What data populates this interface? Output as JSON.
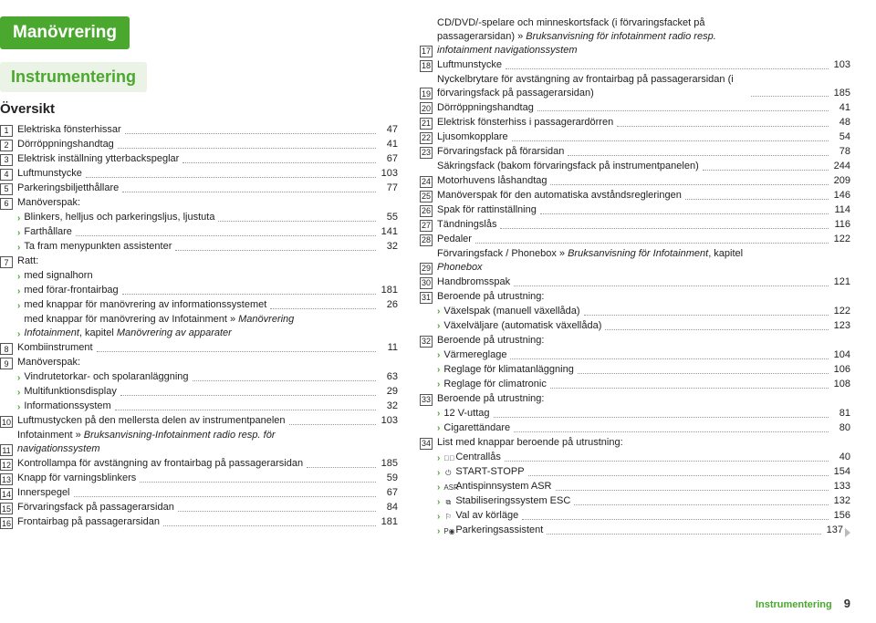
{
  "header": {
    "title": "Manövrering",
    "subtitle": "Instrumentering",
    "overview": "Översikt"
  },
  "footer": {
    "section": "Instrumentering",
    "page": "9"
  },
  "left": [
    {
      "n": "1",
      "t": "Elektriska fönsterhissar",
      "p": "47"
    },
    {
      "n": "2",
      "t": "Dörröppningshandtag",
      "p": "41"
    },
    {
      "n": "3",
      "t": "Elektrisk inställning ytterbackspeglar",
      "p": "67"
    },
    {
      "n": "4",
      "t": "Luftmunstycke",
      "p": "103"
    },
    {
      "n": "5",
      "t": "Parkeringsbiljetthållare",
      "p": "77"
    },
    {
      "n": "6",
      "t": "Manöverspak:",
      "noPage": true
    },
    {
      "sub": true,
      "t": "Blinkers, helljus och parkeringsljus, ljustuta",
      "p": "55"
    },
    {
      "sub": true,
      "t": "Farthållare",
      "p": "141"
    },
    {
      "sub": true,
      "t": "Ta fram menypunkten assistenter",
      "p": "32"
    },
    {
      "n": "7",
      "t": "Ratt:",
      "noPage": true
    },
    {
      "sub": true,
      "t": "med signalhorn",
      "noPage": true
    },
    {
      "sub": true,
      "t": "med förar-frontairbag",
      "p": "181"
    },
    {
      "sub": true,
      "t": "med knappar för manövrering av informationssystemet",
      "p": "26"
    },
    {
      "sub": true,
      "html": "med knappar för manövrering av Infotainment » <span class='italic'>Manövrering Infotainment</span>, kapitel <span class='italic'>Manövrering av apparater</span>",
      "noPage": true
    },
    {
      "n": "8",
      "t": "Kombiinstrument",
      "p": "11"
    },
    {
      "n": "9",
      "t": "Manöverspak:",
      "noPage": true
    },
    {
      "sub": true,
      "t": "Vindrutetorkar- och spolaranläggning",
      "p": "63"
    },
    {
      "sub": true,
      "t": "Multifunktionsdisplay",
      "p": "29"
    },
    {
      "sub": true,
      "t": "Informationssystem",
      "p": "32"
    },
    {
      "n": "10",
      "t": "Luftmustycken på den mellersta delen av instrumentpanelen",
      "p": "103"
    },
    {
      "n": "11",
      "html": "Infotainment » <span class='italic'>Bruksanvisning-Infotainment radio resp. för navigationssystem</span>",
      "noPage": true
    },
    {
      "n": "12",
      "t": "Kontrollampa för avstängning av frontairbag på passagerarsidan",
      "p": "185"
    },
    {
      "n": "13",
      "t": "Knapp för varningsblinkers",
      "p": "59"
    },
    {
      "n": "14",
      "t": "Innerspegel",
      "p": "67"
    },
    {
      "n": "15",
      "t": "Förvaringsfack på passagerarsidan",
      "p": "84"
    },
    {
      "n": "16",
      "t": "Frontairbag på passagerarsidan",
      "p": "181"
    }
  ],
  "right": [
    {
      "n": "17",
      "html": "CD/DVD/-spelare och minneskortsfack (i förvaringsfacket på passagerarsidan) » <span class='italic'>Bruksanvisning för infotainment radio resp. infotainment navigationssystem</span>",
      "noPage": true
    },
    {
      "n": "18",
      "t": "Luftmunstycke",
      "p": "103"
    },
    {
      "n": "19",
      "t": "Nyckelbrytare för avstängning av frontairbag på passagerarsidan (i förvaringsfack på passagerarsidan)",
      "p": "185"
    },
    {
      "n": "20",
      "t": "Dörröppningshandtag",
      "p": "41"
    },
    {
      "n": "21",
      "t": "Elektrisk fönsterhiss i passagerardörren",
      "p": "48"
    },
    {
      "n": "22",
      "t": "Ljusomkopplare",
      "p": "54"
    },
    {
      "n": "23",
      "t": "Förvaringsfack på förarsidan",
      "p": "78"
    },
    {
      "plain": true,
      "t": "Säkringsfack (bakom förvaringsfack på instrumentpanelen)",
      "p": "244"
    },
    {
      "n": "24",
      "t": "Motorhuvens låshandtag",
      "p": "209"
    },
    {
      "n": "25",
      "t": "Manöverspak för den automatiska avståndsregleringen",
      "p": "146"
    },
    {
      "n": "26",
      "t": "Spak för rattinställning",
      "p": "114"
    },
    {
      "n": "27",
      "t": "Tändningslås",
      "p": "116"
    },
    {
      "n": "28",
      "t": "Pedaler",
      "p": "122"
    },
    {
      "n": "29",
      "html": "Förvaringsfack / Phonebox » <span class='italic'>Bruksanvisning för Infotainment</span>, kapitel <span class='italic'>Phonebox</span>",
      "noPage": true
    },
    {
      "n": "30",
      "t": "Handbromsspak",
      "p": "121"
    },
    {
      "n": "31",
      "t": "Beroende på utrustning:",
      "noPage": true
    },
    {
      "sub": true,
      "t": "Växelspak (manuell växellåda)",
      "p": "122"
    },
    {
      "sub": true,
      "t": "Växelväljare (automatisk växellåda)",
      "p": "123"
    },
    {
      "n": "32",
      "t": "Beroende på utrustning:",
      "noPage": true
    },
    {
      "sub": true,
      "t": "Värmereglage",
      "p": "104"
    },
    {
      "sub": true,
      "t": "Reglage för klimatanläggning",
      "p": "106"
    },
    {
      "sub": true,
      "t": "Reglage för climatronic",
      "p": "108"
    },
    {
      "n": "33",
      "t": "Beroende på utrustning:",
      "noPage": true
    },
    {
      "sub": true,
      "t": "12 V-uttag",
      "p": "81"
    },
    {
      "sub": true,
      "t": "Cigarettändare",
      "p": "80"
    },
    {
      "n": "34",
      "t": "List med knappar beroende på utrustning:",
      "noPage": true
    },
    {
      "sub": true,
      "icon": "�⃝",
      "t": "Centrallås",
      "p": "40"
    },
    {
      "sub": true,
      "icon": "⏻",
      "t": "START-STOPP",
      "p": "154"
    },
    {
      "sub": true,
      "icon": "ASR",
      "t": "Antispinnsystem ASR",
      "p": "133"
    },
    {
      "sub": true,
      "icon": "⧉",
      "t": "Stabiliseringssystem ESC",
      "p": "132"
    },
    {
      "sub": true,
      "icon": "⚐",
      "t": "Val av körläge",
      "p": "156"
    },
    {
      "sub": true,
      "icon": "P◉",
      "t": "Parkeringsassistent",
      "p": "137",
      "tri": true
    }
  ]
}
